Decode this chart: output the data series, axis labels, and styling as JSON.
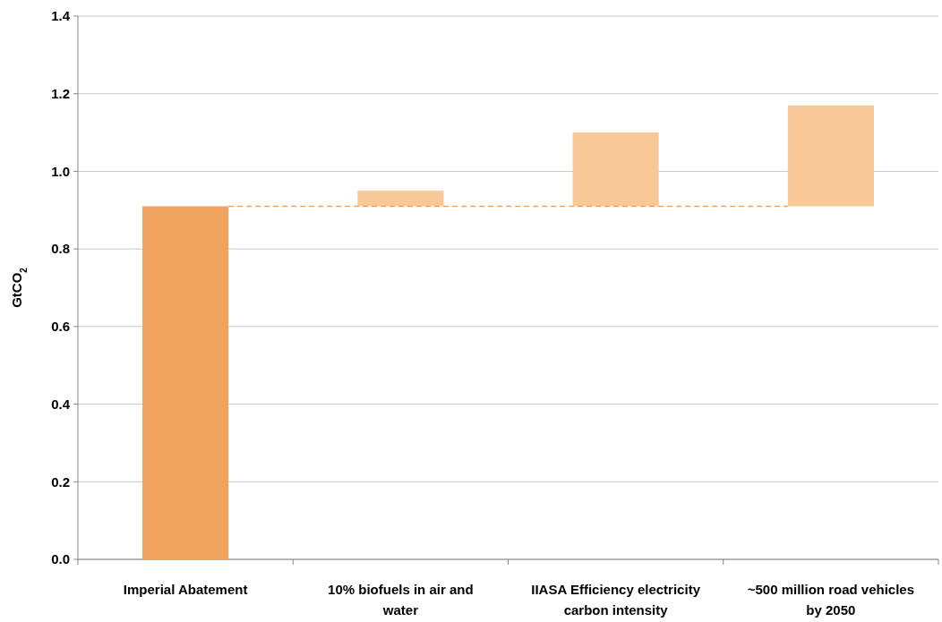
{
  "chart_data": {
    "type": "bar",
    "ylabel": "GtCO$_{2}$",
    "categories": [
      "Imperial Abatement",
      "10% biofuels in air and water",
      "IIASA Efficiency electricity carbon intensity",
      "~500 million road vehicles by 2050"
    ],
    "values": [
      0.91,
      0.04,
      0.19,
      0.26
    ],
    "base": [
      0,
      0.91,
      0.91,
      0.91
    ],
    "colors": [
      "#f0a35e",
      "#f8c896",
      "#f8c896",
      "#f8c896"
    ],
    "ylim": [
      0,
      1.4
    ],
    "yticks": [
      {
        "value": 0,
        "label": "0.0"
      },
      {
        "value": 0.2,
        "label": "0.2"
      },
      {
        "value": 0.4,
        "label": "0.4"
      },
      {
        "value": 0.6,
        "label": "0.6"
      },
      {
        "value": 0.8,
        "label": "0.8"
      },
      {
        "value": 1,
        "label": "1.0"
      },
      {
        "value": 1.2,
        "label": "1.2"
      },
      {
        "value": 1.4,
        "label": "1.4"
      }
    ],
    "grid": "y",
    "ref_lines": [
      {
        "axis": "y",
        "value": 0.91,
        "color": "#f0a35e",
        "line_style": "dashed"
      }
    ]
  }
}
